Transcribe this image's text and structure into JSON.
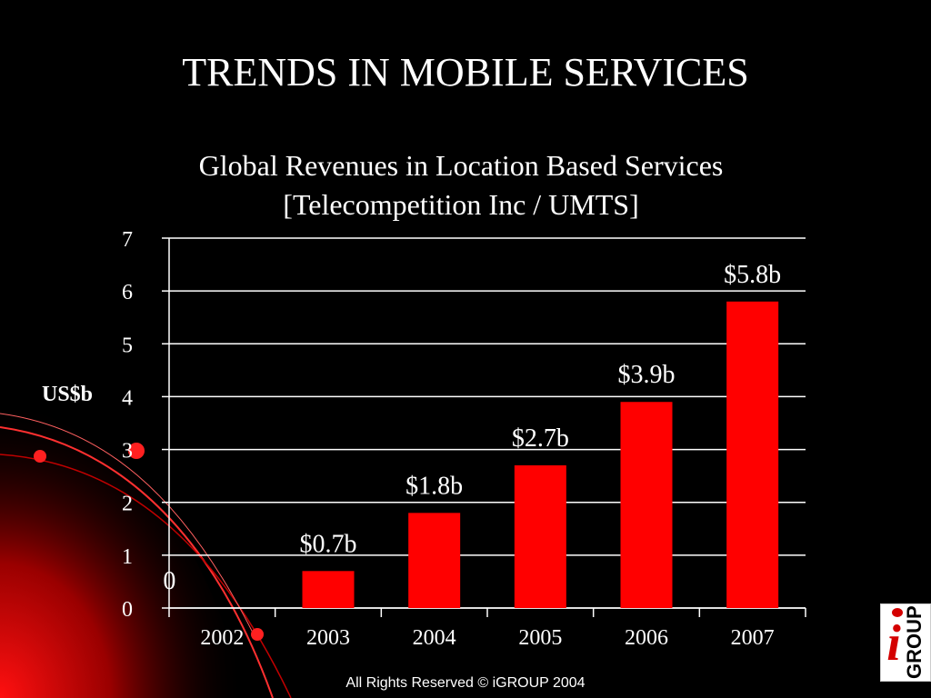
{
  "slide": {
    "title": "TRENDS IN MOBILE SERVICES",
    "footer": "All Rights Reserved © iGROUP 2004"
  },
  "logo": {
    "letter": "i",
    "word": "GROUP"
  },
  "colors": {
    "background": "#000000",
    "bar": "#ff0000",
    "text": "#ffffff"
  },
  "chart_data": {
    "type": "bar",
    "title": "Global Revenues in Location Based Services",
    "subtitle": "[Telecompetition Inc / UMTS]",
    "ylabel": "US$b",
    "xlabel": "",
    "categories": [
      "2002",
      "2003",
      "2004",
      "2005",
      "2006",
      "2007"
    ],
    "values": [
      0,
      0.7,
      1.8,
      2.7,
      3.9,
      5.8
    ],
    "data_labels": [
      "0",
      "$0.7b",
      "$1.8b",
      "$2.7b",
      "$3.9b",
      "$5.8b"
    ],
    "ylim": [
      0,
      7
    ],
    "yticks": [
      "0",
      "1",
      "2",
      "3",
      "4",
      "5",
      "6",
      "7"
    ],
    "grid": true,
    "legend": "none"
  }
}
